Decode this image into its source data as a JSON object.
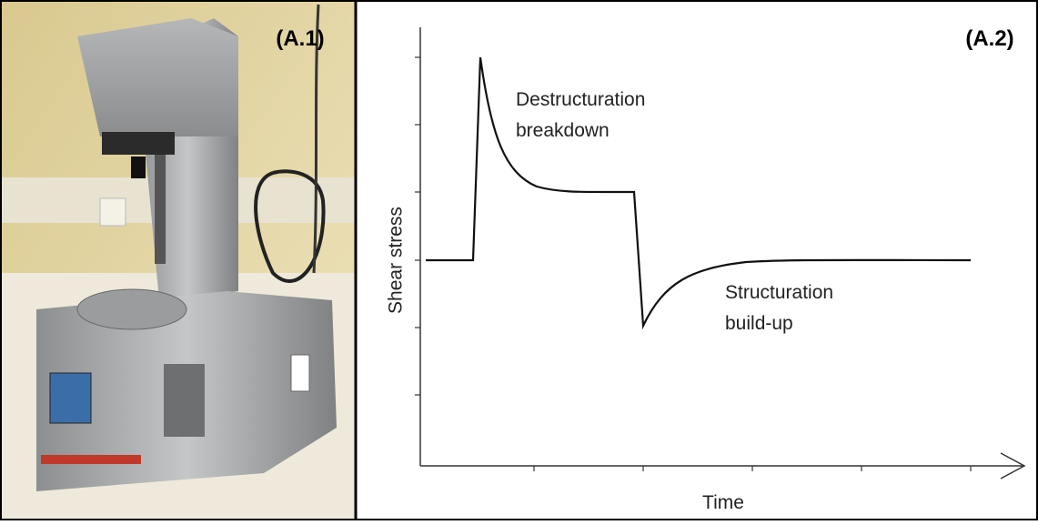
{
  "panels": [
    {
      "label": "(A.1)"
    },
    {
      "label": "(A.2)",
      "y_axis_label": "Shear stress",
      "x_axis_label": "Time",
      "annotations": [
        {
          "lines": [
            "Destructuration",
            "breakdown"
          ]
        },
        {
          "lines": [
            "Structuration",
            "build-up"
          ]
        }
      ]
    }
  ]
}
